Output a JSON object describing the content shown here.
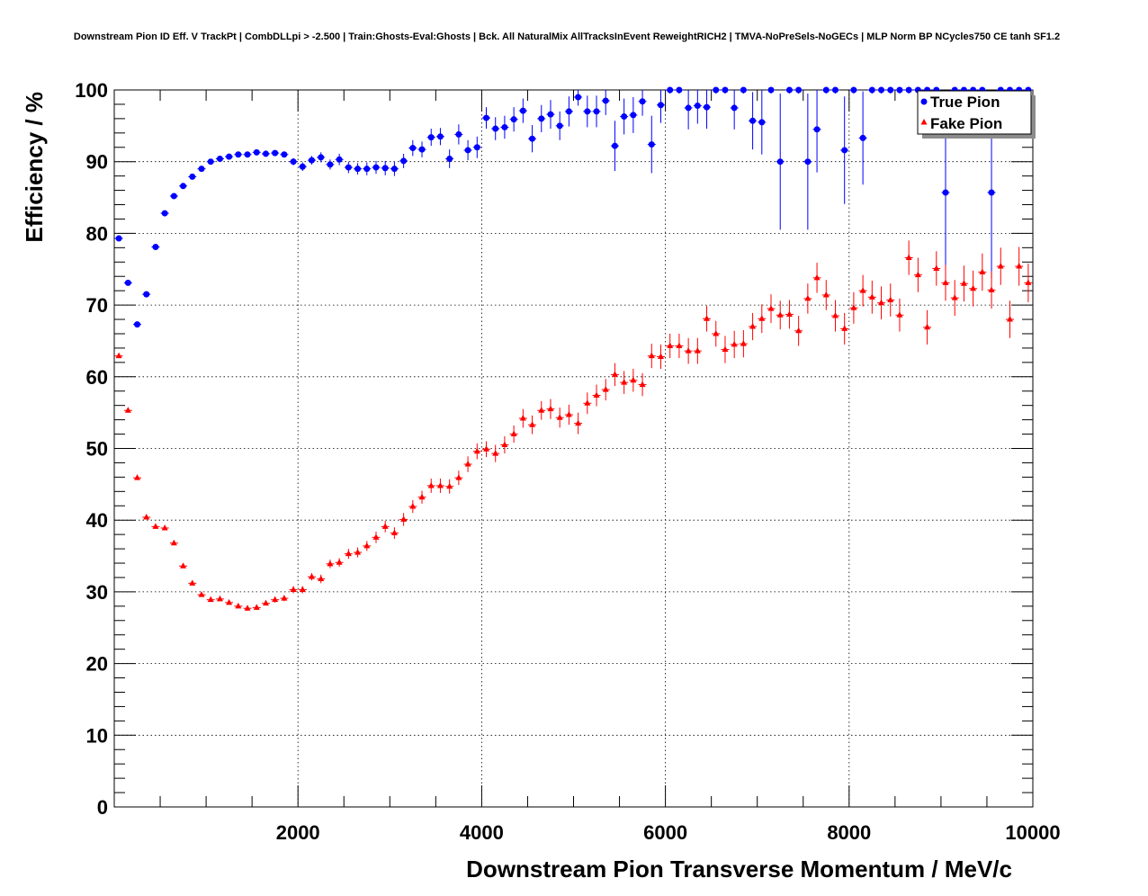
{
  "chart_data": {
    "type": "scatter",
    "title": "Downstream Pion ID Eff. V TrackPt | CombDLLpi > -2.500 | Train:Ghosts-Eval:Ghosts | Bck. All NaturalMix AllTracksInEvent ReweightRICH2 | TMVA-NoPreSels-NoGECs | MLP Norm BP NCycles750 CE tanh SF1.2",
    "xlabel": "Downstream Pion Transverse Momentum / MeV/c",
    "ylabel": "Efficiency / %",
    "xlim": [
      0,
      10000
    ],
    "ylim": [
      0,
      100
    ],
    "x_tick_labels": [
      "2000",
      "4000",
      "6000",
      "8000",
      "10000"
    ],
    "y_tick_labels": [
      "0",
      "10",
      "20",
      "30",
      "40",
      "50",
      "60",
      "70",
      "80",
      "90",
      "100"
    ],
    "grid": true,
    "legend_position": "top-right",
    "series": [
      {
        "name": "True Pion",
        "color": "#0000ff",
        "marker": "circle",
        "x": [
          50,
          150,
          250,
          350,
          450,
          550,
          650,
          750,
          850,
          950,
          1050,
          1150,
          1250,
          1350,
          1450,
          1550,
          1650,
          1750,
          1850,
          1950,
          2050,
          2150,
          2250,
          2350,
          2450,
          2550,
          2650,
          2750,
          2850,
          2950,
          3050,
          3150,
          3250,
          3350,
          3450,
          3550,
          3650,
          3750,
          3850,
          3950,
          4050,
          4150,
          4250,
          4350,
          4450,
          4550,
          4650,
          4750,
          4850,
          4950,
          5050,
          5150,
          5250,
          5350,
          5450,
          5550,
          5650,
          5750,
          5850,
          5950,
          6050,
          6150,
          6250,
          6350,
          6450,
          6550,
          6650,
          6750,
          6850,
          6950,
          7050,
          7150,
          7250,
          7350,
          7450,
          7550,
          7650,
          7750,
          7850,
          7950,
          8050,
          8150,
          8250,
          8350,
          8450,
          8550,
          8650,
          8750,
          8850,
          8950,
          9050,
          9150,
          9250,
          9350,
          9450,
          9550,
          9650,
          9750,
          9850,
          9950
        ],
        "y": [
          79.3,
          73.1,
          67.3,
          71.5,
          78.1,
          82.8,
          85.2,
          86.6,
          87.9,
          89.0,
          90.0,
          90.4,
          90.7,
          91.0,
          91.0,
          91.3,
          91.1,
          91.2,
          91.0,
          90.0,
          89.3,
          90.2,
          90.6,
          89.6,
          90.3,
          89.2,
          89.0,
          89.0,
          89.2,
          89.1,
          89.0,
          90.1,
          91.9,
          91.7,
          93.4,
          93.5,
          90.4,
          93.8,
          91.6,
          92.0,
          96.1,
          94.6,
          94.8,
          95.9,
          97.1,
          93.2,
          96.0,
          96.6,
          95.0,
          97.0,
          99.0,
          97.0,
          97.0,
          98.5,
          92.2,
          96.3,
          96.5,
          98.4,
          92.4,
          97.9,
          100,
          100,
          97.5,
          97.8,
          97.6,
          100,
          100,
          97.5,
          100,
          95.7,
          95.5,
          100,
          90.0,
          100,
          100,
          90.0,
          94.5,
          100,
          100,
          91.6,
          100,
          93.3,
          100,
          100,
          100,
          100,
          100,
          100,
          100,
          100,
          85.7,
          100,
          100,
          100,
          100,
          85.7,
          100,
          100,
          100,
          100
        ],
        "err": [
          0.4,
          0.4,
          0.4,
          0.4,
          0.4,
          0.4,
          0.4,
          0.4,
          0.4,
          0.4,
          0.4,
          0.4,
          0.4,
          0.4,
          0.4,
          0.4,
          0.4,
          0.4,
          0.4,
          0.5,
          0.6,
          0.6,
          0.7,
          0.7,
          0.8,
          0.8,
          0.8,
          0.9,
          0.9,
          1.0,
          1.0,
          1.0,
          1.1,
          1.1,
          1.2,
          1.2,
          1.3,
          1.4,
          1.4,
          1.5,
          1.5,
          1.6,
          1.6,
          1.7,
          1.7,
          1.9,
          1.9,
          2.0,
          2.0,
          2.1,
          1.2,
          2.2,
          2.2,
          2.0,
          3.5,
          2.5,
          2.5,
          2.0,
          4.0,
          2.5,
          0.5,
          0.5,
          3.0,
          2.5,
          3.0,
          0.5,
          0.5,
          3.0,
          0.5,
          4.0,
          4.5,
          0.5,
          9.5,
          0.5,
          0.5,
          9.5,
          6.0,
          0.5,
          0.5,
          7.5,
          0.5,
          6.5,
          0.5,
          0.5,
          0.5,
          0.5,
          0.5,
          0.5,
          0.5,
          0.5,
          12.0,
          0.5,
          0.5,
          0.5,
          0.5,
          12.0,
          0.5,
          0.5,
          0.5,
          0.5
        ]
      },
      {
        "name": "Fake Pion",
        "color": "#ff0000",
        "marker": "triangle",
        "x": [
          50,
          150,
          250,
          350,
          450,
          550,
          650,
          750,
          850,
          950,
          1050,
          1150,
          1250,
          1350,
          1450,
          1550,
          1650,
          1750,
          1850,
          1950,
          2050,
          2150,
          2250,
          2350,
          2450,
          2550,
          2650,
          2750,
          2850,
          2950,
          3050,
          3150,
          3250,
          3350,
          3450,
          3550,
          3650,
          3750,
          3850,
          3950,
          4050,
          4150,
          4250,
          4350,
          4450,
          4550,
          4650,
          4750,
          4850,
          4950,
          5050,
          5150,
          5250,
          5350,
          5450,
          5550,
          5650,
          5750,
          5850,
          5950,
          6050,
          6150,
          6250,
          6350,
          6450,
          6550,
          6650,
          6750,
          6850,
          6950,
          7050,
          7150,
          7250,
          7350,
          7450,
          7550,
          7650,
          7750,
          7850,
          7950,
          8050,
          8150,
          8250,
          8350,
          8450,
          8550,
          8650,
          8750,
          8850,
          8950,
          9050,
          9150,
          9250,
          9350,
          9450,
          9550,
          9650,
          9750,
          9850,
          9950
        ],
        "y": [
          62.9,
          55.3,
          45.9,
          40.4,
          39.1,
          38.9,
          36.8,
          33.6,
          31.2,
          29.6,
          28.9,
          29.0,
          28.5,
          28.0,
          27.7,
          27.8,
          28.4,
          28.9,
          29.1,
          30.3,
          30.3,
          32.1,
          31.8,
          33.9,
          34.1,
          35.3,
          35.5,
          36.4,
          37.6,
          39.1,
          38.2,
          40.1,
          41.9,
          43.2,
          44.8,
          44.8,
          44.7,
          45.9,
          47.8,
          49.6,
          49.9,
          49.3,
          50.5,
          52.0,
          54.2,
          53.3,
          55.3,
          55.5,
          54.3,
          54.7,
          53.5,
          56.3,
          57.4,
          58.2,
          60.3,
          59.2,
          59.5,
          58.9,
          62.9,
          62.8,
          64.3,
          64.3,
          63.6,
          63.6,
          68.1,
          66.0,
          63.8,
          64.5,
          64.6,
          67.0,
          68.1,
          69.5,
          68.6,
          68.7,
          66.4,
          70.9,
          73.8,
          71.4,
          68.5,
          66.7,
          69.6,
          72.0,
          71.1,
          70.3,
          70.7,
          68.6,
          76.6,
          74.2,
          66.9,
          75.1,
          73.1,
          71.0,
          73.0,
          72.3,
          74.6,
          72.1,
          75.4,
          68.0,
          75.4,
          73.1
        ],
        "err": [
          0.3,
          0.3,
          0.3,
          0.3,
          0.3,
          0.3,
          0.3,
          0.3,
          0.3,
          0.3,
          0.3,
          0.3,
          0.3,
          0.3,
          0.3,
          0.3,
          0.3,
          0.4,
          0.4,
          0.5,
          0.5,
          0.5,
          0.6,
          0.6,
          0.6,
          0.7,
          0.7,
          0.7,
          0.8,
          0.8,
          0.8,
          0.9,
          0.9,
          0.9,
          1.0,
          1.0,
          1.0,
          1.0,
          1.1,
          1.1,
          1.1,
          1.2,
          1.2,
          1.2,
          1.3,
          1.3,
          1.3,
          1.4,
          1.4,
          1.4,
          1.5,
          1.5,
          1.5,
          1.5,
          1.6,
          1.6,
          1.6,
          1.6,
          1.7,
          1.7,
          1.7,
          1.7,
          1.8,
          1.8,
          1.8,
          1.8,
          1.9,
          1.9,
          1.9,
          1.9,
          2.0,
          2.0,
          2.0,
          2.0,
          2.1,
          2.1,
          2.1,
          2.1,
          2.2,
          2.2,
          2.2,
          2.2,
          2.3,
          2.3,
          2.3,
          2.3,
          2.4,
          2.4,
          2.4,
          2.4,
          2.5,
          2.5,
          2.5,
          2.5,
          2.6,
          2.6,
          2.6,
          2.6,
          2.7,
          2.7
        ]
      }
    ]
  }
}
